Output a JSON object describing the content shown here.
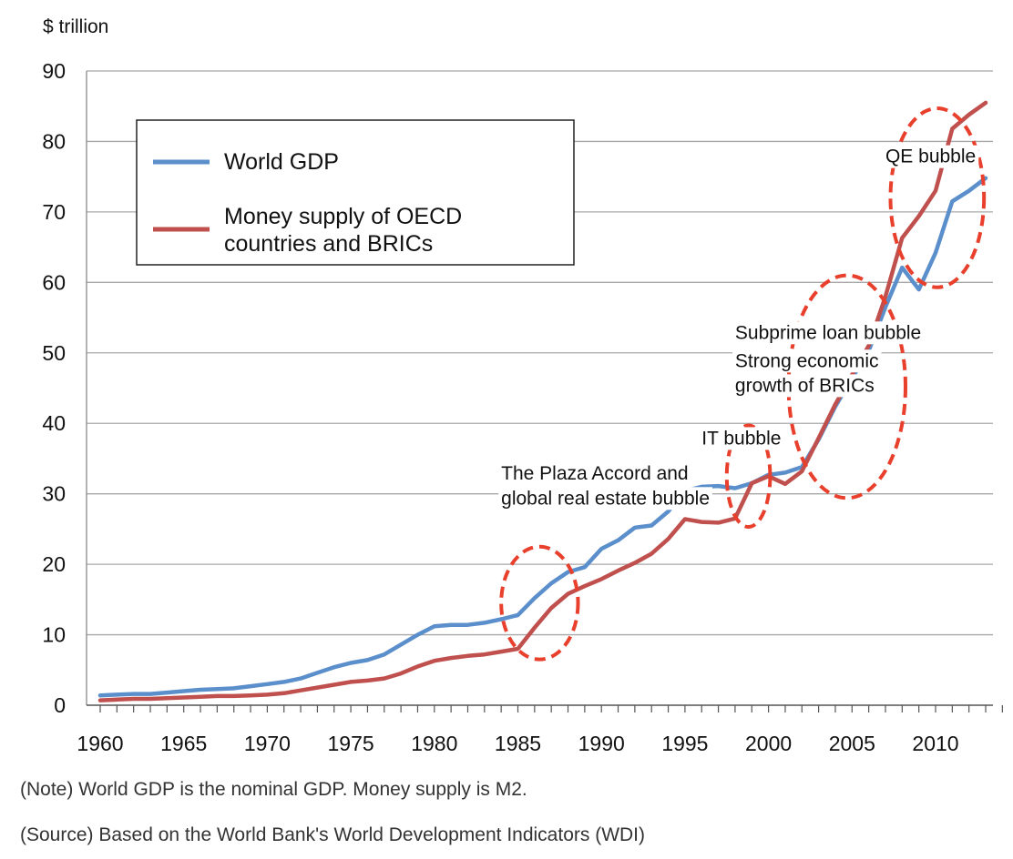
{
  "chart_data": {
    "type": "line",
    "unit_label": "$ trillion",
    "ylim": [
      0,
      90
    ],
    "yticks": [
      0,
      10,
      20,
      30,
      40,
      50,
      60,
      70,
      80,
      90
    ],
    "xlim": [
      1960,
      2013
    ],
    "xtick_labels": [
      1960,
      1965,
      1970,
      1975,
      1980,
      1985,
      1990,
      1995,
      2000,
      2005,
      2010
    ],
    "grid": "horizontal",
    "legend_position": "top-left",
    "x": [
      1960,
      1961,
      1962,
      1963,
      1964,
      1965,
      1966,
      1967,
      1968,
      1969,
      1970,
      1971,
      1972,
      1973,
      1974,
      1975,
      1976,
      1977,
      1978,
      1979,
      1980,
      1981,
      1982,
      1983,
      1984,
      1985,
      1986,
      1987,
      1988,
      1989,
      1990,
      1991,
      1992,
      1993,
      1994,
      1995,
      1996,
      1997,
      1998,
      1999,
      2000,
      2001,
      2002,
      2003,
      2004,
      2005,
      2006,
      2007,
      2008,
      2009,
      2010,
      2011,
      2012,
      2013
    ],
    "series": [
      {
        "name": "World GDP",
        "color": "#5b8fcc",
        "values": [
          1.4,
          1.5,
          1.6,
          1.6,
          1.8,
          2.0,
          2.2,
          2.3,
          2.4,
          2.7,
          3.0,
          3.3,
          3.8,
          4.6,
          5.4,
          6.0,
          6.4,
          7.2,
          8.6,
          10.0,
          11.2,
          11.4,
          11.4,
          11.7,
          12.2,
          12.8,
          15.2,
          17.3,
          18.9,
          19.6,
          22.2,
          23.4,
          25.2,
          25.5,
          27.5,
          30.4,
          31.0,
          31.1,
          30.8,
          31.5,
          32.7,
          33.0,
          33.8,
          37.7,
          42.4,
          46.4,
          50.3,
          56.5,
          62.1,
          59.0,
          64.2,
          71.5,
          73.0,
          74.8
        ]
      },
      {
        "name": "Money supply of OECD countries and BRICs",
        "color": "#c0504d",
        "values": [
          0.7,
          0.8,
          0.9,
          0.9,
          1.0,
          1.1,
          1.2,
          1.3,
          1.3,
          1.4,
          1.5,
          1.7,
          2.1,
          2.5,
          2.9,
          3.3,
          3.5,
          3.8,
          4.5,
          5.5,
          6.3,
          6.7,
          7.0,
          7.2,
          7.6,
          8.0,
          11.0,
          13.8,
          15.8,
          16.9,
          17.9,
          19.1,
          20.2,
          21.5,
          23.6,
          26.4,
          26.0,
          25.9,
          26.5,
          31.5,
          32.5,
          31.4,
          33.2,
          37.9,
          42.7,
          46.9,
          51.0,
          58.0,
          66.3,
          69.4,
          73.0,
          81.8,
          83.8,
          85.5
        ]
      }
    ],
    "annotations": [
      {
        "text": "QE bubble",
        "x": 2007,
        "y": 77
      },
      {
        "text": "Subprime loan bubble",
        "x": 1998,
        "y": 52
      },
      {
        "text": "Strong economic",
        "x": 1998,
        "y": 48
      },
      {
        "text": "growth of BRICs",
        "x": 1998,
        "y": 44.5
      },
      {
        "text": "IT bubble",
        "x": 1996,
        "y": 37
      },
      {
        "text": "The Plaza Accord and",
        "x": 1984,
        "y": 32
      },
      {
        "text": "global real estate bubble",
        "x": 1984,
        "y": 28.5
      }
    ],
    "highlights": [
      {
        "label": "Plaza Accord",
        "center": [
          1986.3,
          14.5
        ],
        "rx": 2.3,
        "ry": 8
      },
      {
        "label": "IT bubble",
        "center": [
          1998.8,
          32.5
        ],
        "rx": 1.3,
        "ry": 7.2
      },
      {
        "label": "Subprime",
        "center": [
          2004.7,
          45.2
        ],
        "rx": 3.5,
        "ry": 15.8
      },
      {
        "label": "QE",
        "center": [
          2010.1,
          72
        ],
        "rx": 2.8,
        "ry": 12.7
      }
    ],
    "highlight_color": "#e8402c"
  },
  "notes": {
    "note": "(Note) World GDP is the nominal GDP. Money supply is M2.",
    "source": "(Source) Based on the World Bank's World Development Indicators (WDI)"
  }
}
